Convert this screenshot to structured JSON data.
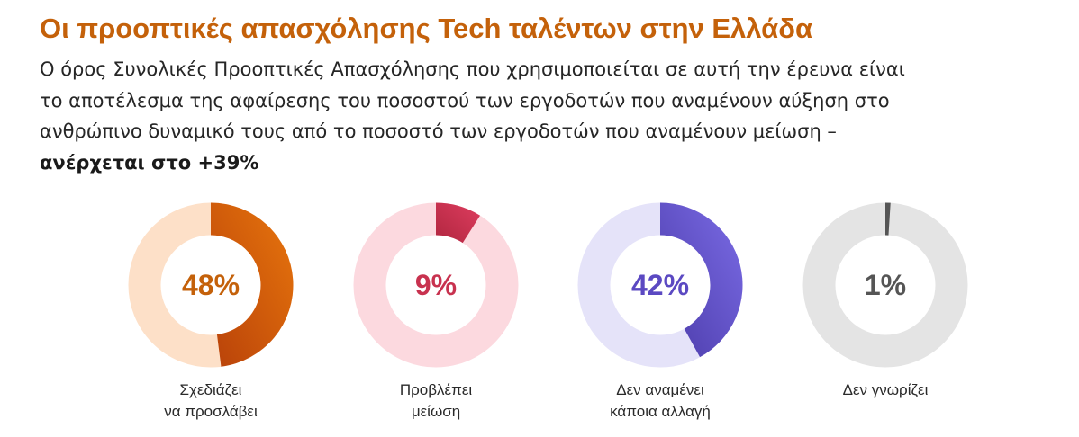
{
  "header": {
    "title": "Οι προοπτικές απασχόλησης Tech ταλέντων στην Ελλάδα",
    "description_lines": [
      "Ο όρος Συνολικές Προοπτικές Απασχόλησης που χρησιμοποιείται σε αυτή την έρευνα είναι",
      "το αποτέλεσμα της αφαίρεσης του ποσοστού των εργοδοτών που αναμένουν αύξηση στο",
      "ανθρώπινο δυναμικό τους από το ποσοστό των εργοδοτών που αναμένουν μείωση –",
      "ανέρχεται στο +39%"
    ]
  },
  "chart_data": [
    {
      "type": "pie",
      "subtype": "donut",
      "value": 48,
      "value_label": "48%",
      "label_lines": [
        "Σχεδιάζει",
        "να προσλάβει"
      ],
      "colors": {
        "track": "#fde0c8",
        "arc_start": "#b8410a",
        "arc_end": "#e8760c",
        "text": "#c4610a"
      }
    },
    {
      "type": "pie",
      "subtype": "donut",
      "value": 9,
      "value_label": "9%",
      "label_lines": [
        "Προβλέπει",
        "μείωση"
      ],
      "colors": {
        "track": "#fcd9df",
        "arc_start": "#b0263f",
        "arc_end": "#de3d5f",
        "text": "#c8324f"
      }
    },
    {
      "type": "pie",
      "subtype": "donut",
      "value": 42,
      "value_label": "42%",
      "label_lines": [
        "Δεν αναμένει",
        "κάποια αλλαγή"
      ],
      "colors": {
        "track": "#e5e3f9",
        "arc_start": "#4a3aa8",
        "arc_end": "#7b6ce6",
        "text": "#5b49c2"
      }
    },
    {
      "type": "pie",
      "subtype": "donut",
      "value": 1,
      "value_label": "1%",
      "label_lines": [
        "Δεν γνωρίζει"
      ],
      "colors": {
        "track": "#e4e4e4",
        "arc_start": "#555555",
        "arc_end": "#555555",
        "text": "#555555"
      }
    }
  ]
}
